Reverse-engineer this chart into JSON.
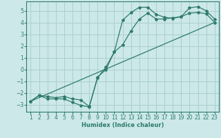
{
  "xlabel": "Humidex (Indice chaleur)",
  "xlim": [
    0.5,
    23.5
  ],
  "ylim": [
    -3.6,
    5.8
  ],
  "yticks": [
    -3,
    -2,
    -1,
    0,
    1,
    2,
    3,
    4,
    5
  ],
  "xticks": [
    1,
    2,
    3,
    4,
    5,
    6,
    7,
    8,
    9,
    10,
    11,
    12,
    13,
    14,
    15,
    16,
    17,
    18,
    19,
    20,
    21,
    22,
    23
  ],
  "bg_color": "#cce8e8",
  "line_color": "#2d7a6e",
  "grid_color": "#aacfcf",
  "line1_x": [
    1,
    2,
    3,
    4,
    5,
    6,
    7,
    8,
    9,
    10,
    11,
    12,
    13,
    14,
    15,
    16,
    17,
    18,
    19,
    20,
    21,
    22,
    23
  ],
  "line1_y": [
    -2.7,
    -2.2,
    -2.5,
    -2.5,
    -2.5,
    -2.8,
    -3.05,
    -3.2,
    -0.65,
    0.0,
    1.5,
    4.2,
    4.85,
    5.3,
    5.3,
    4.7,
    4.45,
    4.35,
    4.5,
    5.25,
    5.35,
    5.0,
    4.3
  ],
  "line2_x": [
    1,
    2,
    3,
    4,
    5,
    6,
    7,
    8,
    9,
    10,
    11,
    12,
    13,
    14,
    15,
    16,
    17,
    18,
    19,
    20,
    21,
    22,
    23
  ],
  "line2_y": [
    -2.7,
    -2.2,
    -2.3,
    -2.4,
    -2.3,
    -2.5,
    -2.6,
    -3.15,
    -0.7,
    0.2,
    1.5,
    2.1,
    3.3,
    4.3,
    4.8,
    4.3,
    4.3,
    4.4,
    4.5,
    4.8,
    4.85,
    4.75,
    4.0
  ],
  "line3_x": [
    1,
    23
  ],
  "line3_y": [
    -2.7,
    4.0
  ]
}
